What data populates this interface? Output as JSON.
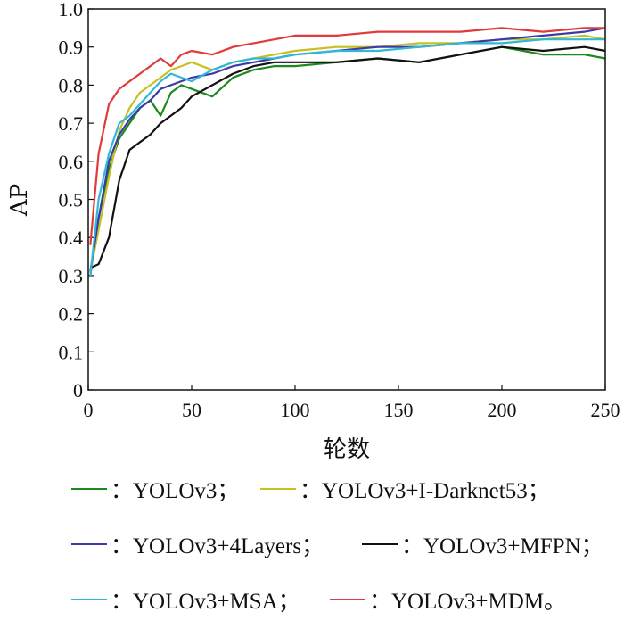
{
  "chart_data": {
    "type": "line",
    "xlabel": "轮数",
    "ylabel": "AP",
    "xlim": [
      0,
      250
    ],
    "ylim": [
      0,
      1.0
    ],
    "xticks": [
      0,
      50,
      100,
      150,
      200,
      250
    ],
    "xtick_labels": [
      "0",
      "50",
      "100",
      "150",
      "200",
      "250"
    ],
    "yticks": [
      0,
      0.1,
      0.2,
      0.3,
      0.4,
      0.5,
      0.6,
      0.7,
      0.8,
      0.9,
      1.0
    ],
    "ytick_labels": [
      "0",
      "0.1",
      "0.2",
      "0.3",
      "0.4",
      "0.5",
      "0.6",
      "0.7",
      "0.8",
      "0.9",
      "1.0"
    ],
    "grid": false,
    "legend_position": "below",
    "x": [
      1,
      5,
      10,
      15,
      20,
      25,
      30,
      35,
      40,
      45,
      50,
      60,
      70,
      80,
      90,
      100,
      120,
      140,
      160,
      180,
      200,
      220,
      240,
      250
    ],
    "series": [
      {
        "name": "YOLOv3",
        "legend_label": "：YOLOv3；",
        "color": "#1a8a1a",
        "values": [
          0.3,
          0.45,
          0.58,
          0.66,
          0.7,
          0.74,
          0.76,
          0.72,
          0.78,
          0.8,
          0.79,
          0.77,
          0.82,
          0.84,
          0.85,
          0.85,
          0.86,
          0.87,
          0.86,
          0.88,
          0.9,
          0.88,
          0.88,
          0.87
        ]
      },
      {
        "name": "YOLOv3+I-Darknet53",
        "legend_label": "：YOLOv3+I-Darknet53；",
        "color": "#c8c020",
        "values": [
          0.31,
          0.42,
          0.56,
          0.68,
          0.74,
          0.78,
          0.8,
          0.82,
          0.84,
          0.85,
          0.86,
          0.84,
          0.86,
          0.87,
          0.88,
          0.89,
          0.9,
          0.9,
          0.91,
          0.91,
          0.92,
          0.92,
          0.93,
          0.92
        ]
      },
      {
        "name": "YOLOv3+4Layers",
        "legend_label": "：YOLOv3+4Layers；",
        "color": "#3a3aa8",
        "values": [
          0.31,
          0.45,
          0.6,
          0.67,
          0.71,
          0.74,
          0.76,
          0.79,
          0.8,
          0.81,
          0.82,
          0.83,
          0.85,
          0.86,
          0.87,
          0.88,
          0.89,
          0.9,
          0.9,
          0.91,
          0.92,
          0.93,
          0.94,
          0.95
        ]
      },
      {
        "name": "YOLOv3+MFPN",
        "legend_label": "：YOLOv3+MFPN；",
        "color": "#111111",
        "values": [
          0.32,
          0.33,
          0.4,
          0.55,
          0.63,
          0.65,
          0.67,
          0.7,
          0.72,
          0.74,
          0.77,
          0.8,
          0.83,
          0.85,
          0.86,
          0.86,
          0.86,
          0.87,
          0.86,
          0.88,
          0.9,
          0.89,
          0.9,
          0.89
        ]
      },
      {
        "name": "YOLOv3+MSA",
        "legend_label": "：YOLOv3+MSA；",
        "color": "#30b8d8",
        "values": [
          0.3,
          0.5,
          0.62,
          0.7,
          0.72,
          0.75,
          0.78,
          0.81,
          0.83,
          0.82,
          0.81,
          0.84,
          0.86,
          0.87,
          0.87,
          0.88,
          0.89,
          0.89,
          0.9,
          0.91,
          0.91,
          0.92,
          0.92,
          0.92
        ]
      },
      {
        "name": "YOLOv3+MDM",
        "legend_label": "：YOLOv3+MDM。",
        "color": "#e03a3a",
        "values": [
          0.38,
          0.62,
          0.75,
          0.79,
          0.81,
          0.83,
          0.85,
          0.87,
          0.85,
          0.88,
          0.89,
          0.88,
          0.9,
          0.91,
          0.92,
          0.93,
          0.93,
          0.94,
          0.94,
          0.94,
          0.95,
          0.94,
          0.95,
          0.95
        ]
      }
    ]
  }
}
